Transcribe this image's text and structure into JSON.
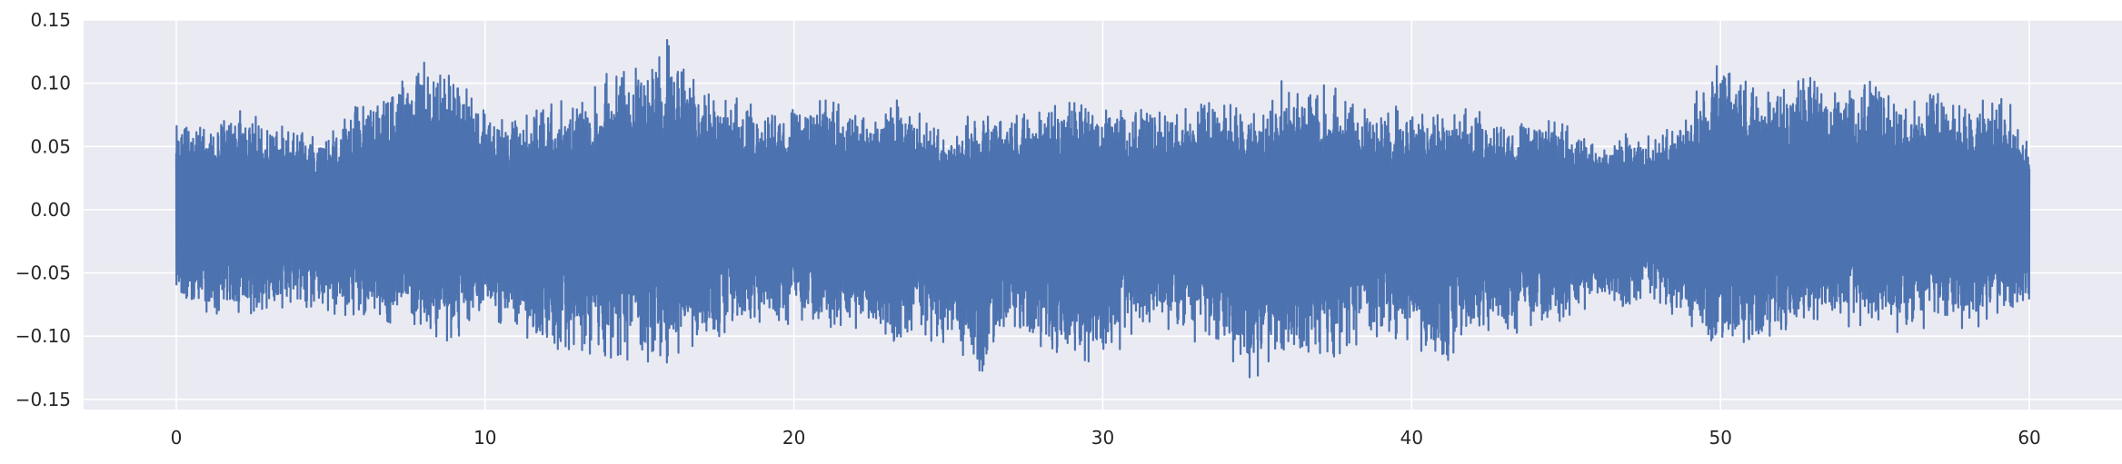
{
  "chart_data": {
    "type": "line",
    "title": "",
    "xlabel": "",
    "ylabel": "",
    "xlim": [
      -3,
      63
    ],
    "ylim": [
      -0.158,
      0.15
    ],
    "x_ticks": [
      0,
      10,
      20,
      30,
      40,
      50,
      60
    ],
    "x_tick_labels": [
      "0",
      "10",
      "20",
      "30",
      "40",
      "50",
      "60"
    ],
    "y_ticks": [
      -0.15,
      -0.1,
      -0.05,
      0.0,
      0.05,
      0.1,
      0.15
    ],
    "y_tick_labels": [
      "−0.15",
      "−0.10",
      "−0.05",
      "0.00",
      "0.05",
      "0.10",
      "0.15"
    ],
    "grid": true,
    "background": "#eaeaf2",
    "series": [
      {
        "color": "#4c72b0",
        "x_start": 0,
        "x_end": 60,
        "envelope": {
          "x": [
            0,
            1,
            2,
            3,
            4,
            5,
            6,
            7,
            8,
            8.5,
            9,
            10,
            11,
            12,
            13,
            14,
            15,
            16,
            17,
            18,
            19,
            20,
            21,
            22,
            23,
            24,
            25,
            26,
            27,
            28,
            29,
            30,
            31,
            32,
            33,
            34,
            35,
            36,
            37,
            38,
            39,
            40,
            41,
            42,
            43,
            44,
            45,
            46,
            47,
            48,
            49,
            50,
            51,
            52,
            53,
            54,
            55,
            56,
            57,
            58,
            59,
            60
          ],
          "upper": [
            0.08,
            0.07,
            0.085,
            0.07,
            0.065,
            0.06,
            0.09,
            0.1,
            0.12,
            0.13,
            0.11,
            0.08,
            0.075,
            0.085,
            0.09,
            0.11,
            0.125,
            0.137,
            0.1,
            0.09,
            0.08,
            0.085,
            0.09,
            0.085,
            0.09,
            0.08,
            0.06,
            0.085,
            0.08,
            0.085,
            0.09,
            0.09,
            0.08,
            0.085,
            0.085,
            0.09,
            0.08,
            0.11,
            0.105,
            0.09,
            0.085,
            0.08,
            0.08,
            0.08,
            0.07,
            0.075,
            0.07,
            0.06,
            0.06,
            0.06,
            0.085,
            0.135,
            0.105,
            0.1,
            0.115,
            0.1,
            0.105,
            0.09,
            0.095,
            0.085,
            0.1,
            0.06
          ],
          "lower": [
            -0.08,
            -0.085,
            -0.09,
            -0.085,
            -0.08,
            -0.085,
            -0.09,
            -0.095,
            -0.1,
            -0.105,
            -0.11,
            -0.09,
            -0.1,
            -0.12,
            -0.115,
            -0.12,
            -0.12,
            -0.125,
            -0.105,
            -0.1,
            -0.095,
            -0.09,
            -0.095,
            -0.1,
            -0.11,
            -0.105,
            -0.11,
            -0.145,
            -0.1,
            -0.115,
            -0.12,
            -0.13,
            -0.1,
            -0.095,
            -0.105,
            -0.115,
            -0.14,
            -0.12,
            -0.13,
            -0.11,
            -0.1,
            -0.11,
            -0.125,
            -0.105,
            -0.1,
            -0.095,
            -0.09,
            -0.08,
            -0.08,
            -0.075,
            -0.1,
            -0.12,
            -0.115,
            -0.1,
            -0.09,
            -0.095,
            -0.095,
            -0.1,
            -0.09,
            -0.095,
            -0.09,
            -0.08
          ]
        }
      }
    ]
  }
}
